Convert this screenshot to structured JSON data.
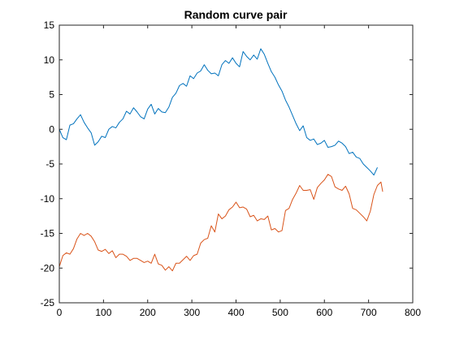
{
  "chart_data": {
    "type": "line",
    "title": "Random curve pair",
    "xlabel": "",
    "ylabel": "",
    "xlim": [
      0,
      800
    ],
    "ylim": [
      -25,
      15
    ],
    "xticks": [
      0,
      100,
      200,
      300,
      400,
      500,
      600,
      700,
      800
    ],
    "yticks": [
      -25,
      -20,
      -15,
      -10,
      -5,
      0,
      5,
      10,
      15
    ],
    "grid": false,
    "legend": "none",
    "series": [
      {
        "color": "#0072BD",
        "x": [
          0,
          8,
          16,
          24,
          32,
          40,
          48,
          56,
          64,
          72,
          80,
          88,
          96,
          104,
          112,
          120,
          128,
          136,
          144,
          152,
          160,
          168,
          176,
          184,
          192,
          200,
          208,
          216,
          224,
          232,
          240,
          248,
          256,
          264,
          272,
          280,
          288,
          296,
          304,
          312,
          320,
          328,
          336,
          344,
          352,
          360,
          368,
          376,
          384,
          392,
          400,
          408,
          416,
          424,
          432,
          440,
          448,
          456,
          464,
          472,
          480,
          488,
          496,
          504,
          512,
          520,
          528,
          536,
          544,
          552,
          560,
          568,
          576,
          584,
          592,
          600,
          608,
          616,
          624,
          632,
          640,
          648,
          656,
          664,
          672,
          680,
          688,
          696,
          704,
          712,
          720
        ],
        "y": [
          0,
          -1.2,
          -1.5,
          0.6,
          0.8,
          1.5,
          2.1,
          1.0,
          0.2,
          -0.5,
          -2.3,
          -1.8,
          -1.0,
          -1.2,
          0.0,
          0.4,
          0.2,
          1.0,
          1.5,
          2.6,
          2.2,
          3.1,
          2.5,
          1.8,
          1.5,
          2.9,
          3.6,
          2.2,
          3.0,
          2.5,
          2.4,
          3.2,
          4.6,
          5.2,
          6.3,
          6.6,
          6.2,
          7.7,
          7.3,
          8.1,
          8.4,
          9.3,
          8.5,
          8.0,
          8.1,
          7.7,
          9.3,
          9.9,
          9.5,
          10.3,
          9.5,
          9.0,
          11.2,
          10.5,
          10.0,
          10.7,
          10.1,
          11.6,
          10.8,
          9.5,
          8.3,
          7.5,
          6.4,
          5.5,
          4.2,
          3.2,
          2.0,
          0.8,
          -0.2,
          0.5,
          -1.2,
          -1.6,
          -1.4,
          -2.2,
          -2.0,
          -1.6,
          -2.6,
          -2.5,
          -2.3,
          -1.7,
          -2.0,
          -2.5,
          -3.5,
          -3.3,
          -4.0,
          -4.2,
          -5.0,
          -5.5,
          -6.0,
          -6.6,
          -5.5
        ]
      },
      {
        "color": "#D95319",
        "x": [
          0,
          8,
          16,
          24,
          32,
          40,
          48,
          56,
          64,
          72,
          80,
          88,
          96,
          104,
          112,
          120,
          128,
          136,
          144,
          152,
          160,
          168,
          176,
          184,
          192,
          200,
          208,
          216,
          224,
          232,
          240,
          248,
          256,
          264,
          272,
          280,
          288,
          296,
          304,
          312,
          320,
          328,
          336,
          344,
          352,
          360,
          368,
          376,
          384,
          392,
          400,
          408,
          416,
          424,
          432,
          440,
          448,
          456,
          464,
          472,
          480,
          488,
          496,
          504,
          512,
          520,
          528,
          536,
          544,
          552,
          560,
          568,
          576,
          584,
          592,
          600,
          608,
          616,
          624,
          632,
          640,
          648,
          656,
          664,
          672,
          680,
          688,
          696,
          704,
          712,
          720,
          728,
          732
        ],
        "y": [
          -19.8,
          -18.2,
          -17.8,
          -18.0,
          -17.2,
          -15.8,
          -15.0,
          -15.3,
          -15.0,
          -15.4,
          -16.2,
          -17.4,
          -17.6,
          -17.3,
          -17.9,
          -17.5,
          -18.5,
          -18.0,
          -18.0,
          -18.3,
          -18.9,
          -18.6,
          -18.6,
          -18.9,
          -19.2,
          -19.0,
          -19.3,
          -18.0,
          -19.4,
          -19.6,
          -20.3,
          -19.8,
          -20.4,
          -19.3,
          -19.3,
          -18.8,
          -18.3,
          -18.9,
          -18.2,
          -18.0,
          -16.4,
          -15.9,
          -15.7,
          -13.9,
          -14.8,
          -12.2,
          -12.9,
          -12.5,
          -11.6,
          -11.2,
          -10.5,
          -11.3,
          -11.2,
          -11.5,
          -12.6,
          -12.4,
          -13.2,
          -12.9,
          -13.0,
          -12.5,
          -14.5,
          -14.3,
          -14.8,
          -14.6,
          -11.7,
          -11.4,
          -10.1,
          -9.2,
          -8.1,
          -8.8,
          -8.8,
          -8.7,
          -10.1,
          -8.4,
          -7.8,
          -7.3,
          -6.5,
          -6.8,
          -8.3,
          -8.6,
          -8.8,
          -8.2,
          -9.3,
          -11.4,
          -11.6,
          -12.1,
          -12.6,
          -13.2,
          -11.8,
          -9.4,
          -8.1,
          -7.6,
          -9.0
        ]
      }
    ]
  }
}
